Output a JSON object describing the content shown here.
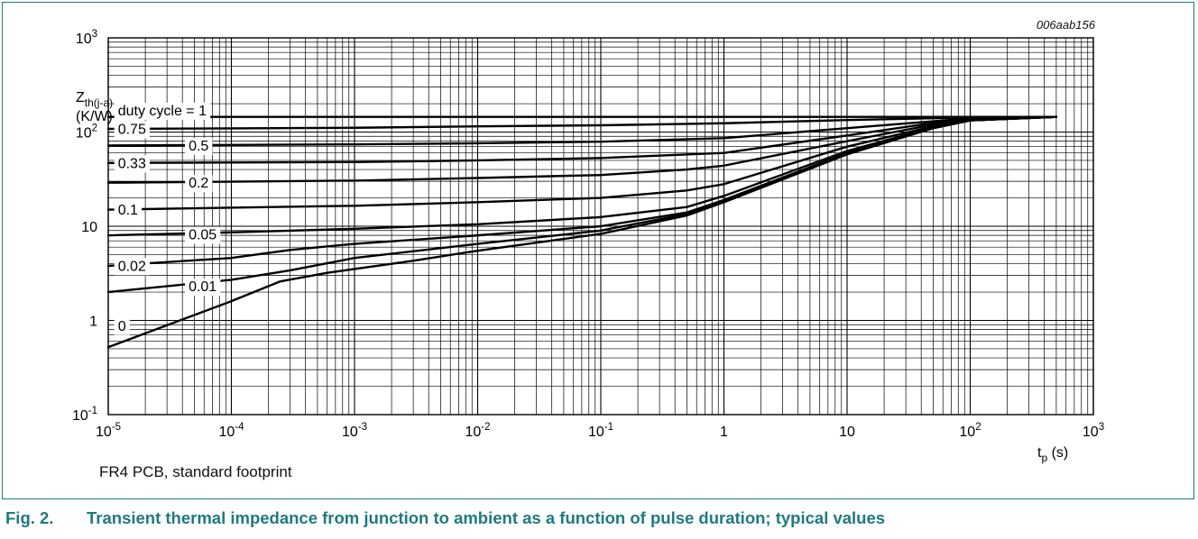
{
  "figure": {
    "number": "Fig. 2.",
    "caption": "Transient thermal impedance from junction to ambient as a function of pulse duration; typical values",
    "note": "FR4 PCB, standard footprint",
    "code": "006aab156"
  },
  "chart_data": {
    "type": "line",
    "xscale": "log",
    "yscale": "log",
    "xlim": [
      1e-05,
      1000
    ],
    "ylim": [
      0.1,
      1000
    ],
    "grid": true,
    "xlabel": {
      "main": "t",
      "sub": "p",
      "unit": "(s)"
    },
    "ylabel": {
      "main": "Z",
      "sub": "th(j-a)",
      "unit": "(K/W)"
    },
    "x_ticks": [
      {
        "base": "10",
        "exp": "-5"
      },
      {
        "base": "10",
        "exp": "-4"
      },
      {
        "base": "10",
        "exp": "-3"
      },
      {
        "base": "10",
        "exp": "-2"
      },
      {
        "base": "10",
        "exp": "-1"
      },
      {
        "base": "1",
        "exp": ""
      },
      {
        "base": "10",
        "exp": ""
      },
      {
        "base": "10",
        "exp": "2"
      },
      {
        "base": "10",
        "exp": "3"
      }
    ],
    "y_ticks": [
      {
        "base": "10",
        "exp": "-1"
      },
      {
        "base": "1",
        "exp": ""
      },
      {
        "base": "10",
        "exp": ""
      },
      {
        "base": "10",
        "exp": "2"
      },
      {
        "base": "10",
        "exp": "3"
      }
    ],
    "series": [
      {
        "name": "duty cycle = 1",
        "points": [
          [
            1e-05,
            145
          ],
          [
            500,
            145
          ]
        ]
      },
      {
        "name": "0.75",
        "points": [
          [
            1e-05,
            108
          ],
          [
            0.001,
            111
          ],
          [
            0.01,
            115
          ],
          [
            0.1,
            118
          ],
          [
            1,
            124
          ],
          [
            10,
            134
          ],
          [
            100,
            143
          ],
          [
            500,
            145
          ]
        ]
      },
      {
        "name": "0.5",
        "points": [
          [
            1e-05,
            72
          ],
          [
            0.001,
            74
          ],
          [
            0.01,
            76
          ],
          [
            0.1,
            79
          ],
          [
            1,
            86
          ],
          [
            10,
            110
          ],
          [
            50,
            130
          ],
          [
            100,
            140
          ],
          [
            500,
            145
          ]
        ]
      },
      {
        "name": "0.33",
        "points": [
          [
            1e-05,
            47
          ],
          [
            0.001,
            48
          ],
          [
            0.01,
            50
          ],
          [
            0.1,
            53
          ],
          [
            1,
            60
          ],
          [
            10,
            92
          ],
          [
            50,
            125
          ],
          [
            100,
            138
          ],
          [
            500,
            145
          ]
        ]
      },
      {
        "name": "0.2",
        "points": [
          [
            1e-05,
            29
          ],
          [
            0.001,
            30.5
          ],
          [
            0.01,
            32.5
          ],
          [
            0.1,
            35
          ],
          [
            0.5,
            40
          ],
          [
            1,
            44
          ],
          [
            10,
            80
          ],
          [
            50,
            120
          ],
          [
            100,
            136
          ],
          [
            500,
            145
          ]
        ]
      },
      {
        "name": "0.1",
        "points": [
          [
            1e-05,
            15
          ],
          [
            0.001,
            16.5
          ],
          [
            0.01,
            18
          ],
          [
            0.1,
            20
          ],
          [
            0.5,
            24
          ],
          [
            1,
            28
          ],
          [
            10,
            70
          ],
          [
            50,
            115
          ],
          [
            100,
            134
          ],
          [
            500,
            145
          ]
        ]
      },
      {
        "name": "0.05",
        "points": [
          [
            1e-05,
            8
          ],
          [
            0.0001,
            8.6
          ],
          [
            0.001,
            9.4
          ],
          [
            0.01,
            10.5
          ],
          [
            0.1,
            12.5
          ],
          [
            0.5,
            16
          ],
          [
            1,
            21
          ],
          [
            10,
            63
          ],
          [
            50,
            112
          ],
          [
            100,
            133
          ],
          [
            500,
            145
          ]
        ]
      },
      {
        "name": "0.02",
        "points": [
          [
            1e-05,
            3.8
          ],
          [
            0.0001,
            4.6
          ],
          [
            0.0003,
            5.6
          ],
          [
            0.001,
            6.5
          ],
          [
            0.01,
            8
          ],
          [
            0.1,
            10
          ],
          [
            0.5,
            14
          ],
          [
            1,
            19
          ],
          [
            10,
            60
          ],
          [
            50,
            110
          ],
          [
            100,
            133
          ],
          [
            500,
            145
          ]
        ]
      },
      {
        "name": "0.01",
        "points": [
          [
            1e-05,
            2.0
          ],
          [
            0.0001,
            2.7
          ],
          [
            0.0003,
            3.4
          ],
          [
            0.001,
            4.6
          ],
          [
            0.01,
            6.5
          ],
          [
            0.1,
            9
          ],
          [
            0.5,
            13.5
          ],
          [
            1,
            19
          ],
          [
            10,
            59
          ],
          [
            50,
            110
          ],
          [
            100,
            133
          ],
          [
            500,
            145
          ]
        ]
      },
      {
        "name": "0",
        "points": [
          [
            1e-05,
            0.52
          ],
          [
            0.0001,
            1.6
          ],
          [
            0.00025,
            2.6
          ],
          [
            0.0006,
            3.2
          ],
          [
            0.003,
            4.3
          ],
          [
            0.01,
            5.5
          ],
          [
            0.1,
            8.3
          ],
          [
            0.5,
            13
          ],
          [
            1,
            18
          ],
          [
            10,
            58
          ],
          [
            50,
            110
          ],
          [
            100,
            133
          ],
          [
            500,
            145
          ]
        ]
      }
    ],
    "labels": [
      {
        "text": "duty cycle = 1",
        "x": 1.12e-05,
        "y": 170
      },
      {
        "text": "0.75",
        "x": 1.12e-05,
        "y": 108
      },
      {
        "text": "0.5",
        "x": 4.2e-05,
        "y": 72
      },
      {
        "text": "0.33",
        "x": 1.12e-05,
        "y": 47
      },
      {
        "text": "0.2",
        "x": 4.2e-05,
        "y": 29
      },
      {
        "text": "0.1",
        "x": 1.12e-05,
        "y": 15
      },
      {
        "text": "0.05",
        "x": 4.2e-05,
        "y": 8.2
      },
      {
        "text": "0.02",
        "x": 1.12e-05,
        "y": 3.8
      },
      {
        "text": "0.01",
        "x": 4.2e-05,
        "y": 2.3
      },
      {
        "text": "0",
        "x": 1.12e-05,
        "y": 0.88
      }
    ]
  }
}
